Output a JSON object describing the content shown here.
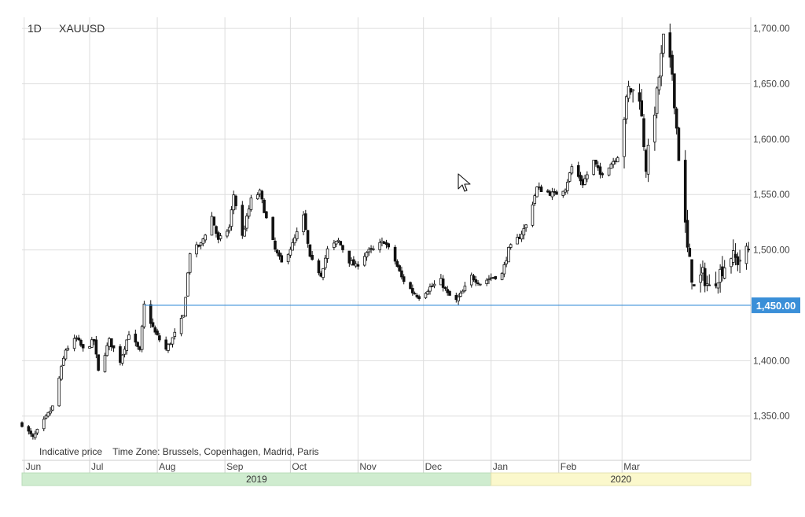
{
  "header": {
    "timeframe": "1D",
    "symbol": "XAUUSD"
  },
  "footer": {
    "note": "Indicative price",
    "timezone": "Time Zone: Brussels, Copenhagen, Madrid, Paris"
  },
  "colors": {
    "candle": "#111111",
    "grid": "#dddddd",
    "hline": "#3a8fd8",
    "label_bg": "#3a8fd8",
    "year_2019_bg": "#cfeccf",
    "year_2020_bg": "#fbf8cc"
  },
  "chart_data": {
    "type": "candlestick",
    "symbol": "XAUUSD",
    "interval": "1D",
    "ylim": [
      1310,
      1710
    ],
    "y_ticks": [
      "1,350.00",
      "1,400.00",
      "1,450.00",
      "1,500.00",
      "1,550.00",
      "1,600.00",
      "1,650.00",
      "1,700.00"
    ],
    "x_ticks": [
      "Jun",
      "Jul",
      "Aug",
      "Sep",
      "Oct",
      "Nov",
      "Dec",
      "Jan",
      "Feb",
      "Mar"
    ],
    "years": [
      "2019",
      "2020"
    ],
    "horizontal_line": {
      "value": 1450,
      "label": "1,450.00"
    },
    "grid": true,
    "close_path": [
      [
        "2019-05-31",
        1343
      ],
      [
        "2019-06-05",
        1330
      ],
      [
        "2019-06-10",
        1345
      ],
      [
        "2019-06-14",
        1358
      ],
      [
        "2019-06-20",
        1410
      ],
      [
        "2019-06-25",
        1420
      ],
      [
        "2019-06-28",
        1410
      ],
      [
        "2019-07-03",
        1418
      ],
      [
        "2019-07-05",
        1390
      ],
      [
        "2019-07-10",
        1418
      ],
      [
        "2019-07-15",
        1400
      ],
      [
        "2019-07-19",
        1425
      ],
      [
        "2019-07-24",
        1408
      ],
      [
        "2019-07-26",
        1450
      ],
      [
        "2019-07-31",
        1425
      ],
      [
        "2019-08-05",
        1410
      ],
      [
        "2019-08-08",
        1420
      ],
      [
        "2019-08-13",
        1440
      ],
      [
        "2019-08-16",
        1498
      ],
      [
        "2019-08-21",
        1505
      ],
      [
        "2019-08-26",
        1530
      ],
      [
        "2019-08-29",
        1508
      ],
      [
        "2019-09-03",
        1520
      ],
      [
        "2019-09-05",
        1550
      ],
      [
        "2019-09-09",
        1512
      ],
      [
        "2019-09-13",
        1545
      ],
      [
        "2019-09-17",
        1552
      ],
      [
        "2019-09-20",
        1528
      ],
      [
        "2019-09-24",
        1500
      ],
      [
        "2019-09-27",
        1488
      ],
      [
        "2019-10-02",
        1505
      ],
      [
        "2019-10-07",
        1530
      ],
      [
        "2019-10-10",
        1492
      ],
      [
        "2019-10-15",
        1478
      ],
      [
        "2019-10-18",
        1500
      ],
      [
        "2019-10-23",
        1508
      ],
      [
        "2019-10-28",
        1490
      ],
      [
        "2019-10-31",
        1485
      ],
      [
        "2019-11-05",
        1498
      ],
      [
        "2019-11-08",
        1500
      ],
      [
        "2019-11-13",
        1508
      ],
      [
        "2019-11-18",
        1490
      ],
      [
        "2019-11-21",
        1475
      ],
      [
        "2019-11-26",
        1462
      ],
      [
        "2019-11-29",
        1458
      ],
      [
        "2019-12-04",
        1466
      ],
      [
        "2019-12-09",
        1472
      ],
      [
        "2019-12-12",
        1460
      ],
      [
        "2019-12-16",
        1454
      ],
      [
        "2019-12-19",
        1462
      ],
      [
        "2019-12-23",
        1476
      ],
      [
        "2019-12-27",
        1470
      ],
      [
        "2020-01-01",
        1475
      ],
      [
        "2020-01-06",
        1478
      ],
      [
        "2020-01-09",
        1500
      ],
      [
        "2020-01-14",
        1512
      ],
      [
        "2020-01-17",
        1522
      ],
      [
        "2020-01-22",
        1556
      ],
      [
        "2020-01-27",
        1552
      ],
      [
        "2020-01-30",
        1550
      ],
      [
        "2020-02-04",
        1556
      ],
      [
        "2020-02-07",
        1575
      ],
      [
        "2020-02-12",
        1560
      ],
      [
        "2020-02-17",
        1580
      ],
      [
        "2020-02-20",
        1568
      ],
      [
        "2020-02-25",
        1578
      ],
      [
        "2020-02-28",
        1585
      ],
      [
        "2020-03-04",
        1645
      ],
      [
        "2020-03-09",
        1640
      ],
      [
        "2020-03-12",
        1575
      ],
      [
        "2020-03-17",
        1640
      ],
      [
        "2020-03-20",
        1690
      ],
      [
        "2020-03-24",
        1660
      ],
      [
        "2020-03-27",
        1585
      ],
      [
        "2020-03-31",
        1500
      ],
      [
        "2020-04-03",
        1465
      ],
      [
        "2020-04-07",
        1478
      ],
      [
        "2020-04-10",
        1465
      ],
      [
        "2020-04-15",
        1480
      ],
      [
        "2020-04-20",
        1495
      ],
      [
        "2020-04-23",
        1490
      ],
      [
        "2020-04-28",
        1500
      ]
    ]
  }
}
